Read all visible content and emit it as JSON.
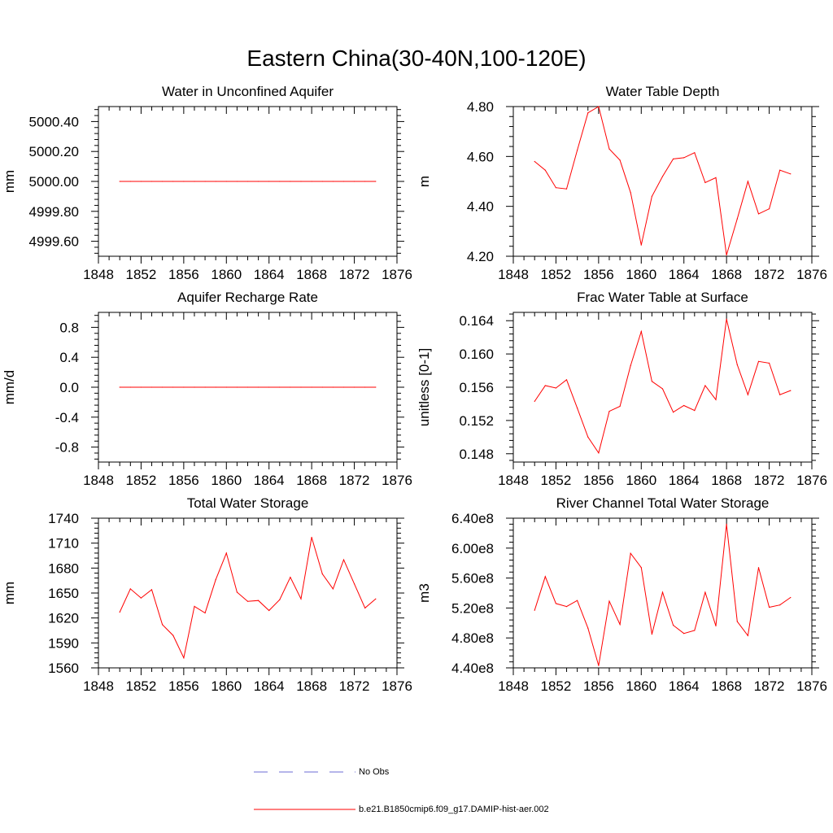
{
  "title": "Eastern China(30-40N,100-120E)",
  "legend": {
    "entries": [
      {
        "label": "No Obs",
        "color": "#6b6bd6",
        "style": "dashed"
      },
      {
        "label": "b.e21.B1850cmip6.f09_g17.DAMIP-hist-aer.002",
        "color": "#ff0000",
        "style": "solid"
      }
    ],
    "placement": "bottom-center"
  },
  "chart_data": [
    {
      "type": "line",
      "title": "Water in Unconfined Aquifer",
      "xlabel": "",
      "ylabel": "mm",
      "xlim": [
        1848,
        1876
      ],
      "ylim": [
        4999.5,
        5000.5
      ],
      "xticks": [
        1848,
        1852,
        1856,
        1860,
        1864,
        1868,
        1872,
        1876
      ],
      "xtick_labels": [
        "1848",
        "1852",
        "1856",
        "1860",
        "1864",
        "1868",
        "1872",
        "1876"
      ],
      "yticks": [
        4999.6,
        4999.8,
        5000.0,
        5000.2,
        5000.4
      ],
      "ytick_labels": [
        "4999.60",
        "4999.80",
        "5000.00",
        "5000.20",
        "5000.40"
      ],
      "grid": false,
      "x": [
        1850,
        1851,
        1852,
        1853,
        1854,
        1855,
        1856,
        1857,
        1858,
        1859,
        1860,
        1861,
        1862,
        1863,
        1864,
        1865,
        1866,
        1867,
        1868,
        1869,
        1870,
        1871,
        1872,
        1873,
        1874
      ],
      "series": [
        {
          "name": "b.e21.B1850cmip6.f09_g17.DAMIP-hist-aer.002",
          "color": "#ff0000",
          "values": [
            5000.0,
            5000.0,
            5000.0,
            5000.0,
            5000.0,
            5000.0,
            5000.0,
            5000.0,
            5000.0,
            5000.0,
            5000.0,
            5000.0,
            5000.0,
            5000.0,
            5000.0,
            5000.0,
            5000.0,
            5000.0,
            5000.0,
            5000.0,
            5000.0,
            5000.0,
            5000.0,
            5000.0,
            5000.0
          ]
        }
      ]
    },
    {
      "type": "line",
      "title": "Water Table Depth",
      "xlabel": "",
      "ylabel": "m",
      "xlim": [
        1848,
        1876
      ],
      "ylim": [
        4.2,
        4.8
      ],
      "xticks": [
        1848,
        1852,
        1856,
        1860,
        1864,
        1868,
        1872,
        1876
      ],
      "xtick_labels": [
        "1848",
        "1852",
        "1856",
        "1860",
        "1864",
        "1868",
        "1872",
        "1876"
      ],
      "yticks": [
        4.2,
        4.4,
        4.6,
        4.8
      ],
      "ytick_labels": [
        "4.20",
        "4.40",
        "4.60",
        "4.80"
      ],
      "grid": false,
      "x": [
        1850,
        1851,
        1852,
        1853,
        1854,
        1855,
        1856,
        1857,
        1858,
        1859,
        1860,
        1861,
        1862,
        1863,
        1864,
        1865,
        1866,
        1867,
        1868,
        1869,
        1870,
        1871,
        1872,
        1873,
        1874
      ],
      "series": [
        {
          "name": "b.e21.B1850cmip6.f09_g17.DAMIP-hist-aer.002",
          "color": "#ff0000",
          "values": [
            4.58,
            4.545,
            4.475,
            4.47,
            4.625,
            4.775,
            4.8,
            4.63,
            4.585,
            4.455,
            4.245,
            4.44,
            4.52,
            4.59,
            4.595,
            4.615,
            4.495,
            4.515,
            4.205,
            4.35,
            4.5,
            4.37,
            4.39,
            4.545,
            4.53
          ]
        }
      ]
    },
    {
      "type": "line",
      "title": "Aquifer Recharge Rate",
      "xlabel": "",
      "ylabel": "mm/d",
      "xlim": [
        1848,
        1876
      ],
      "ylim": [
        -1.0,
        1.0
      ],
      "xticks": [
        1848,
        1852,
        1856,
        1860,
        1864,
        1868,
        1872,
        1876
      ],
      "xtick_labels": [
        "1848",
        "1852",
        "1856",
        "1860",
        "1864",
        "1868",
        "1872",
        "1876"
      ],
      "yticks": [
        -0.8,
        -0.4,
        0.0,
        0.4,
        0.8
      ],
      "ytick_labels": [
        "-0.8",
        "-0.4",
        "0.0",
        "0.4",
        "0.8"
      ],
      "grid": false,
      "x": [
        1850,
        1851,
        1852,
        1853,
        1854,
        1855,
        1856,
        1857,
        1858,
        1859,
        1860,
        1861,
        1862,
        1863,
        1864,
        1865,
        1866,
        1867,
        1868,
        1869,
        1870,
        1871,
        1872,
        1873,
        1874
      ],
      "series": [
        {
          "name": "b.e21.B1850cmip6.f09_g17.DAMIP-hist-aer.002",
          "color": "#ff0000",
          "values": [
            0.0,
            0.0,
            0.0,
            0.0,
            0.0,
            0.0,
            0.0,
            0.0,
            0.0,
            0.0,
            0.0,
            0.0,
            0.0,
            0.0,
            0.0,
            0.0,
            0.0,
            0.0,
            0.0,
            0.0,
            0.0,
            0.0,
            0.0,
            0.0,
            0.0
          ]
        }
      ]
    },
    {
      "type": "line",
      "title": "Frac Water Table at Surface",
      "xlabel": "",
      "ylabel": "unitless [0-1]",
      "xlim": [
        1848,
        1876
      ],
      "ylim": [
        0.147,
        0.165
      ],
      "xticks": [
        1848,
        1852,
        1856,
        1860,
        1864,
        1868,
        1872,
        1876
      ],
      "xtick_labels": [
        "1848",
        "1852",
        "1856",
        "1860",
        "1864",
        "1868",
        "1872",
        "1876"
      ],
      "yticks": [
        0.148,
        0.152,
        0.156,
        0.16,
        0.164
      ],
      "ytick_labels": [
        "0.148",
        "0.152",
        "0.156",
        "0.160",
        "0.164"
      ],
      "grid": false,
      "x": [
        1850,
        1851,
        1852,
        1853,
        1854,
        1855,
        1856,
        1857,
        1858,
        1859,
        1860,
        1861,
        1862,
        1863,
        1864,
        1865,
        1866,
        1867,
        1868,
        1869,
        1870,
        1871,
        1872,
        1873,
        1874
      ],
      "series": [
        {
          "name": "b.e21.B1850cmip6.f09_g17.DAMIP-hist-aer.002",
          "color": "#ff0000",
          "values": [
            0.1543,
            0.1562,
            0.1559,
            0.1569,
            0.1535,
            0.15,
            0.1481,
            0.1531,
            0.1537,
            0.1586,
            0.1627,
            0.1567,
            0.1558,
            0.153,
            0.1538,
            0.1532,
            0.1562,
            0.1545,
            0.1642,
            0.1587,
            0.1551,
            0.1591,
            0.1589,
            0.1551,
            0.1556
          ]
        }
      ]
    },
    {
      "type": "line",
      "title": "Total Water Storage",
      "xlabel": "",
      "ylabel": "mm",
      "xlim": [
        1848,
        1876
      ],
      "ylim": [
        1560,
        1740
      ],
      "xticks": [
        1848,
        1852,
        1856,
        1860,
        1864,
        1868,
        1872,
        1876
      ],
      "xtick_labels": [
        "1848",
        "1852",
        "1856",
        "1860",
        "1864",
        "1868",
        "1872",
        "1876"
      ],
      "yticks": [
        1560,
        1590,
        1620,
        1650,
        1680,
        1710,
        1740
      ],
      "ytick_labels": [
        "1560",
        "1590",
        "1620",
        "1650",
        "1680",
        "1710",
        "1740"
      ],
      "grid": false,
      "x": [
        1850,
        1851,
        1852,
        1853,
        1854,
        1855,
        1856,
        1857,
        1858,
        1859,
        1860,
        1861,
        1862,
        1863,
        1864,
        1865,
        1866,
        1867,
        1868,
        1869,
        1870,
        1871,
        1872,
        1873,
        1874
      ],
      "series": [
        {
          "name": "b.e21.B1850cmip6.f09_g17.DAMIP-hist-aer.002",
          "color": "#ff0000",
          "values": [
            1627,
            1655,
            1644,
            1654,
            1612,
            1599,
            1572,
            1634,
            1626,
            1666,
            1698,
            1651,
            1640,
            1641,
            1629,
            1642,
            1669,
            1643,
            1717,
            1673,
            1655,
            1690,
            1661,
            1632,
            1643
          ]
        }
      ]
    },
    {
      "type": "line",
      "title": "River Channel Total Water Storage",
      "xlabel": "",
      "ylabel": "m3",
      "xlim": [
        1848,
        1876
      ],
      "ylim": [
        440000000,
        640000000
      ],
      "xticks": [
        1848,
        1852,
        1856,
        1860,
        1864,
        1868,
        1872,
        1876
      ],
      "xtick_labels": [
        "1848",
        "1852",
        "1856",
        "1860",
        "1864",
        "1868",
        "1872",
        "1876"
      ],
      "yticks": [
        440000000,
        480000000,
        520000000,
        560000000,
        600000000,
        640000000
      ],
      "ytick_labels": [
        "4.40e8",
        "4.80e8",
        "5.20e8",
        "5.60e8",
        "6.00e8",
        "6.40e8"
      ],
      "grid": false,
      "x": [
        1850,
        1851,
        1852,
        1853,
        1854,
        1855,
        1856,
        1857,
        1858,
        1859,
        1860,
        1861,
        1862,
        1863,
        1864,
        1865,
        1866,
        1867,
        1868,
        1869,
        1870,
        1871,
        1872,
        1873,
        1874
      ],
      "series": [
        {
          "name": "b.e21.B1850cmip6.f09_g17.DAMIP-hist-aer.002",
          "color": "#ff0000",
          "values": [
            517000000,
            562000000,
            526000000,
            522000000,
            530000000,
            493000000,
            443000000,
            529000000,
            498000000,
            593000000,
            574000000,
            485000000,
            541000000,
            497000000,
            486000000,
            490000000,
            541000000,
            496000000,
            632000000,
            502000000,
            483000000,
            574000000,
            521000000,
            524000000,
            534000000
          ]
        }
      ]
    }
  ]
}
